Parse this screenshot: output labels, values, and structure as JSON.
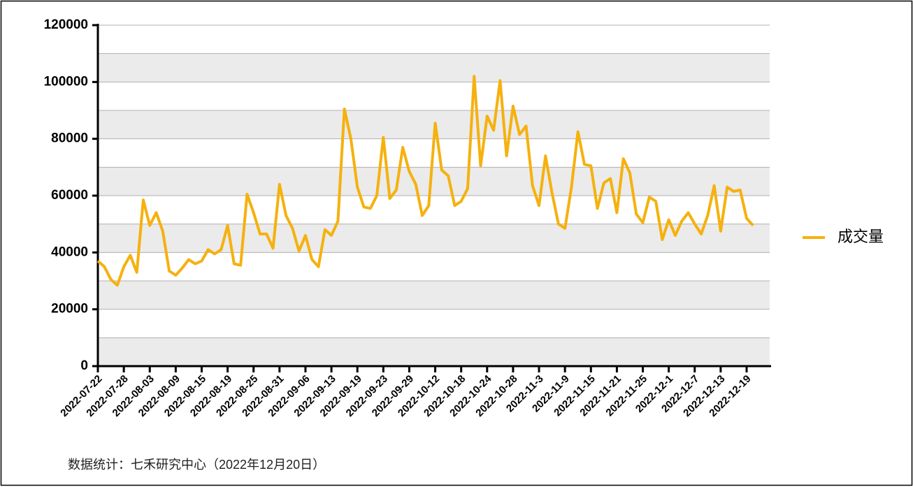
{
  "chart_data": {
    "type": "line",
    "categories": [
      "2022-07-22",
      null,
      null,
      null,
      "2022-07-28",
      null,
      null,
      null,
      "2022-08-03",
      null,
      null,
      null,
      "2022-08-09",
      null,
      null,
      null,
      "2022-08-15",
      null,
      null,
      null,
      "2022-08-19",
      null,
      null,
      null,
      "2022-08-25",
      null,
      null,
      null,
      "2022-08-31",
      null,
      null,
      null,
      "2022-09-06",
      null,
      null,
      null,
      "2022-09-13",
      null,
      null,
      null,
      "2022-09-19",
      null,
      null,
      null,
      "2022-09-23",
      null,
      null,
      null,
      "2022-09-29",
      null,
      null,
      null,
      "2022-10-12",
      null,
      null,
      null,
      "2022-10-18",
      null,
      null,
      null,
      "2022-10-24",
      null,
      null,
      null,
      "2022-10-28",
      null,
      null,
      null,
      "2022-11-3",
      null,
      null,
      null,
      "2022-11-9",
      null,
      null,
      null,
      "2022-11-15",
      null,
      null,
      null,
      "2022-11-21",
      null,
      null,
      null,
      "2022-11-25",
      null,
      null,
      null,
      "2022-12-1",
      null,
      null,
      null,
      "2022-12-7",
      null,
      null,
      null,
      "2022-12-13",
      null,
      null,
      null,
      "2022-12-19",
      null
    ],
    "series": [
      {
        "name": "成交量",
        "color": "#f5b10e",
        "values": [
          37000,
          35000,
          30500,
          28500,
          35000,
          39000,
          33000,
          58500,
          49500,
          54000,
          47500,
          33500,
          32000,
          34500,
          37500,
          36000,
          37000,
          41000,
          39500,
          41000,
          49500,
          36000,
          35500,
          60500,
          54000,
          46500,
          46500,
          41500,
          64000,
          53000,
          48500,
          40500,
          46000,
          37500,
          35000,
          48000,
          46000,
          51000,
          90500,
          80000,
          63000,
          56000,
          55500,
          60000,
          80500,
          59000,
          62000,
          77000,
          68500,
          64000,
          53000,
          56500,
          85500,
          69000,
          67000,
          56500,
          58000,
          62500,
          102000,
          70500,
          88000,
          83000,
          100500,
          74000,
          91500,
          81500,
          84500,
          63500,
          56500,
          74000,
          61000,
          50000,
          48500,
          63000,
          82500,
          71000,
          70500,
          55500,
          64500,
          66000,
          54000,
          73000,
          68000,
          53500,
          50500,
          59500,
          58000,
          44500,
          51500,
          46000,
          51000,
          54000,
          50000,
          46500,
          53000,
          63500,
          47500,
          63000,
          61500,
          62000,
          52000,
          49500
        ]
      }
    ],
    "ylim": [
      0,
      120000
    ],
    "yticks": [
      0,
      20000,
      40000,
      60000,
      80000,
      100000,
      120000
    ],
    "grid": true,
    "legend": "right",
    "source": "数据统计：七禾研究中心（2022年12月20日）"
  }
}
